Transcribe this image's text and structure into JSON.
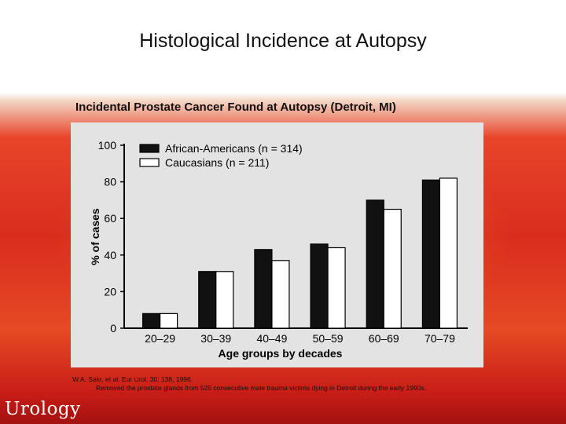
{
  "slide": {
    "title": "Histological Incidence at Autopsy",
    "subtitle": "Incidental Prostate Cancer Found at Autopsy (Detroit, MI)",
    "citation_line1": "W.A. Sakr, et al. Eur Urol. 30: 138, 1996.",
    "citation_line2": "Removed the prostate glands from 525 consecutive male trauma victims dying in Detroit during the early 1990s.",
    "logo": "Urology"
  },
  "colors": {
    "series1": "#111111",
    "series2": "#ffffff",
    "panel": "#e3e3e3"
  },
  "chart_data": {
    "type": "bar",
    "title": "",
    "xlabel": "Age groups by decades",
    "ylabel": "% of cases",
    "categories": [
      "20–29",
      "30–39",
      "40–49",
      "50–59",
      "60–69",
      "70–79"
    ],
    "series": [
      {
        "name": "African-Americans (n = 314)",
        "values": [
          8,
          31,
          43,
          46,
          70,
          81
        ]
      },
      {
        "name": "Caucasians (n = 211)",
        "values": [
          8,
          31,
          37,
          44,
          65,
          82
        ]
      }
    ],
    "ylim": [
      0,
      100
    ],
    "yticks": [
      0,
      20,
      40,
      60,
      80,
      100
    ],
    "legend": "top-left",
    "grid": false
  }
}
